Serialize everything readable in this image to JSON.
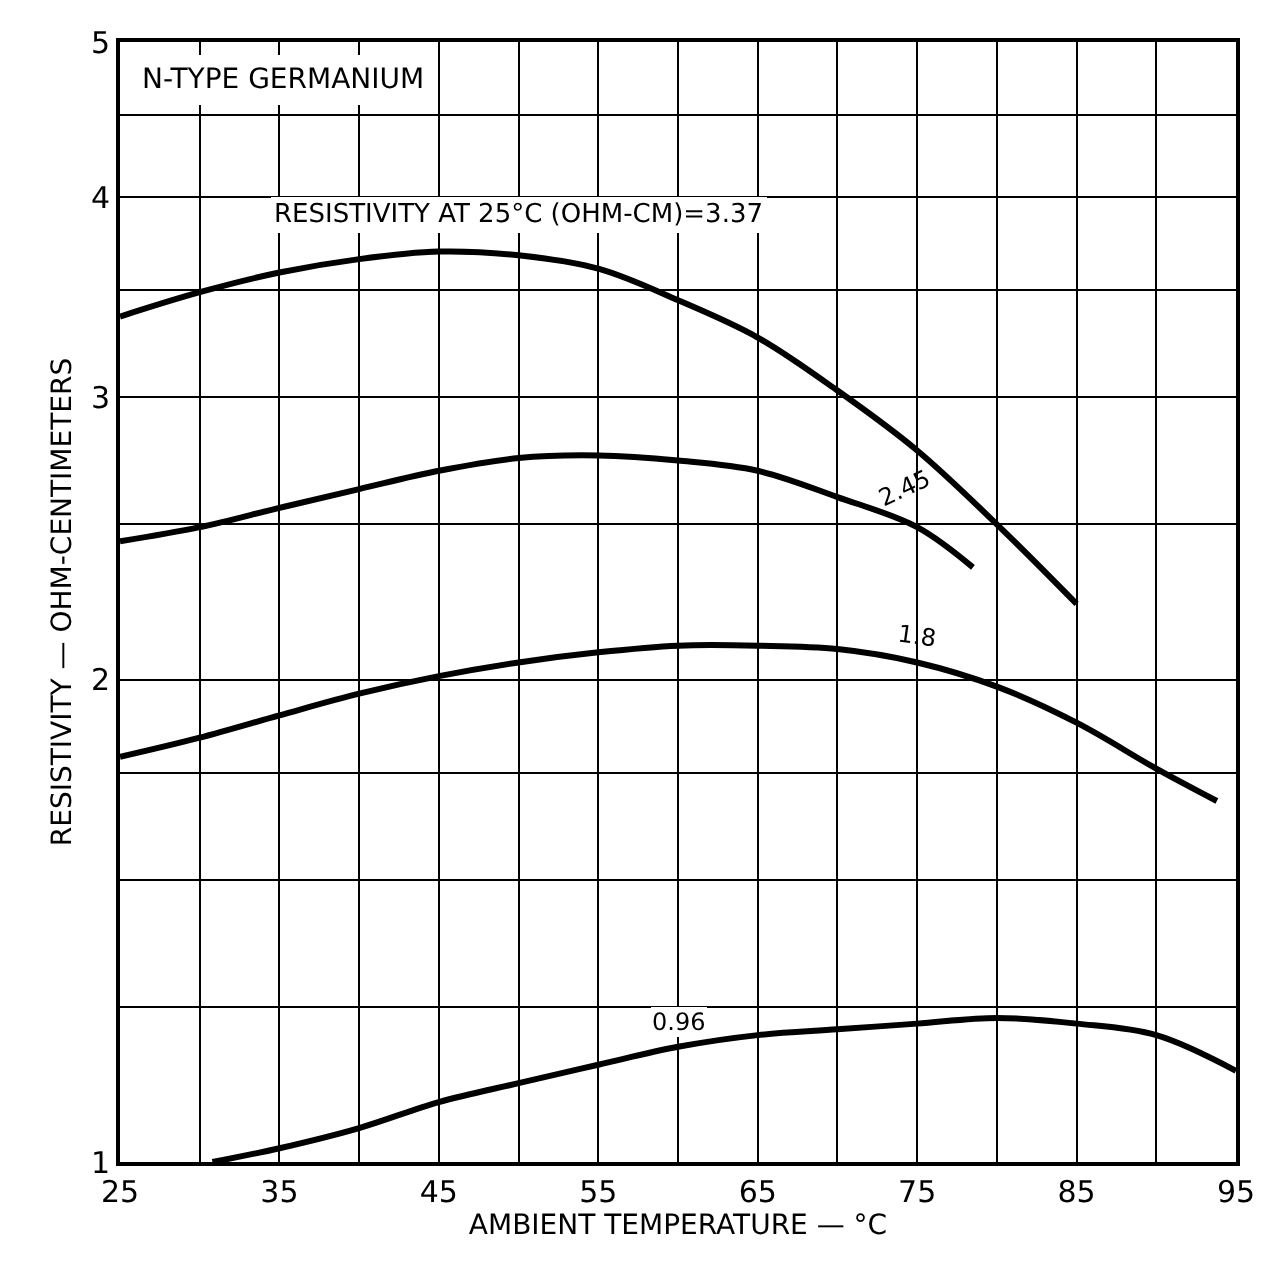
{
  "chart_data": {
    "type": "line",
    "title": "N-TYPE GERMANIUM",
    "xlabel": "AMBIENT TEMPERATURE — °C",
    "ylabel": "RESISTIVITY — OHM-CENTIMETERS",
    "log": "y",
    "grid": true,
    "legend": false,
    "marker": "none",
    "line_style": "solid",
    "xlim": [
      25,
      95
    ],
    "ylim": [
      1,
      5
    ],
    "xticks": [
      25,
      {
        "value": 30,
        "label": null
      },
      35,
      {
        "value": 40,
        "label": null
      },
      45,
      {
        "value": 50,
        "label": null
      },
      55,
      {
        "value": 60,
        "label": null
      },
      65,
      {
        "value": 70,
        "label": null
      },
      75,
      {
        "value": 80,
        "label": null
      },
      85,
      {
        "value": 90,
        "label": null
      },
      95
    ],
    "yticks": [
      1,
      {
        "value": 1.25,
        "label": null
      },
      {
        "value": 1.5,
        "label": null
      },
      {
        "value": 1.75,
        "label": null
      },
      2,
      {
        "value": 2.5,
        "label": null
      },
      3,
      {
        "value": 3.5,
        "label": null
      },
      4,
      {
        "value": 4.5,
        "label": null
      },
      5
    ],
    "series": [
      {
        "name": "RESISTIVITY AT 25°C (OHM-CM)=3.37",
        "color": "#000000",
        "x": [
          25,
          30,
          35,
          40,
          45,
          50,
          55,
          60,
          65,
          70,
          75,
          80,
          85
        ],
        "values": [
          3.37,
          3.49,
          3.59,
          3.66,
          3.7,
          3.68,
          3.61,
          3.45,
          3.27,
          3.03,
          2.78,
          2.5,
          2.23
        ]
      },
      {
        "name": "2.45",
        "color": "#000000",
        "x": [
          25,
          30,
          35,
          40,
          45,
          50,
          55,
          60,
          65,
          70,
          75,
          78.5
        ],
        "values": [
          2.44,
          2.49,
          2.56,
          2.63,
          2.7,
          2.75,
          2.76,
          2.74,
          2.7,
          2.6,
          2.49,
          2.35
        ]
      },
      {
        "name": "1.8",
        "color": "#000000",
        "x": [
          25,
          30,
          35,
          40,
          45,
          50,
          55,
          60,
          65,
          70,
          75,
          80,
          85,
          90,
          93.8
        ],
        "values": [
          1.79,
          1.84,
          1.9,
          1.96,
          2.01,
          2.05,
          2.08,
          2.1,
          2.1,
          2.09,
          2.05,
          1.98,
          1.88,
          1.76,
          1.68
        ]
      },
      {
        "name": "0.96",
        "color": "#000000",
        "x": [
          30.8,
          35,
          40,
          45,
          50,
          55,
          60,
          65,
          70,
          75,
          80,
          85,
          90,
          95
        ],
        "values": [
          1.0,
          1.02,
          1.05,
          1.09,
          1.12,
          1.15,
          1.18,
          1.2,
          1.21,
          1.22,
          1.23,
          1.22,
          1.2,
          1.14
        ]
      }
    ]
  }
}
